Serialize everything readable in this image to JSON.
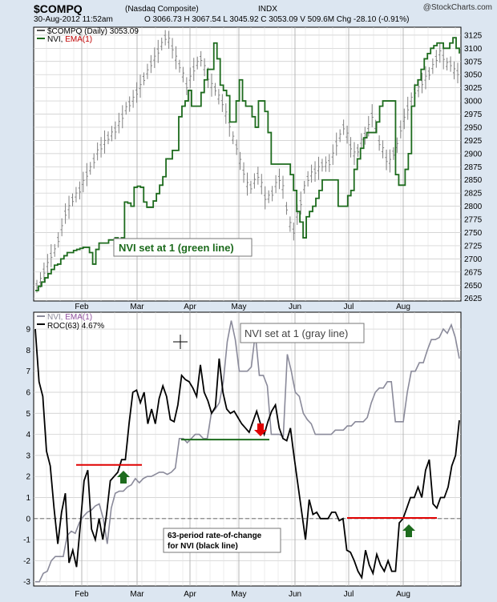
{
  "header": {
    "symbol": "$COMPQ",
    "name": "(Nasdaq Composite)",
    "exchange": "INDX",
    "brand": "@StockCharts.com",
    "datetime": "30-Aug-2012 11:52am",
    "ohlc": "O 3066.73  H 3067.54  L 3045.92  C 3053.09  V 509.6M  Chg -28.10 (-0.91%)"
  },
  "colors": {
    "nvi_green": "#1d6b1d",
    "nvi_gray": "#8a8a9a",
    "roc_black": "#000000",
    "price_bars": "#808080",
    "red_line": "#e00000",
    "grid": "#c8c8c8",
    "panel_bg": "#ffffff"
  },
  "chart_data": [
    {
      "type": "line",
      "panel": "top",
      "legend": [
        "$COMPQ (Daily) 3053.09",
        "NVI, EMA(1)"
      ],
      "x_ticks": [
        "Feb",
        "Mar",
        "Apr",
        "May",
        "Jun",
        "Jul",
        "Aug"
      ],
      "ylim": [
        2620,
        3140
      ],
      "y_ticks": [
        2625,
        2650,
        2675,
        2700,
        2725,
        2750,
        2775,
        2800,
        2825,
        2850,
        2875,
        2900,
        2925,
        2950,
        2975,
        3000,
        3025,
        3050,
        3075,
        3100,
        3125
      ],
      "grid": true,
      "annotation": "NVI set at 1 (green line)",
      "series": [
        {
          "name": "$COMPQ (Daily) 3053.09",
          "style": "ohlc-bars",
          "values": [
            2648,
            2660,
            2676,
            2690,
            2706,
            2716,
            2736,
            2760,
            2786,
            2798,
            2812,
            2822,
            2830,
            2846,
            2860,
            2872,
            2886,
            2904,
            2912,
            2922,
            2930,
            2938,
            2944,
            2958,
            2970,
            2986,
            2994,
            3004,
            3016,
            3028,
            3042,
            3056,
            3070,
            3082,
            3094,
            3108,
            3120,
            3116,
            3100,
            3082,
            3066,
            3050,
            3028,
            3044,
            3060,
            3072,
            3080,
            3064,
            3044,
            3030,
            3022,
            3008,
            2996,
            2976,
            2954,
            2930,
            2912,
            2886,
            2864,
            2842,
            2836,
            2848,
            2858,
            2842,
            2816,
            2818,
            2824,
            2842,
            2852,
            2836,
            2796,
            2766,
            2752,
            2784,
            2806,
            2836,
            2852,
            2862,
            2866,
            2872,
            2878,
            2880,
            2882,
            2898,
            2918,
            2934,
            2950,
            2936,
            2912,
            2900,
            2906,
            2924,
            2934,
            2952,
            2972,
            2952,
            2920,
            2908,
            2888,
            2886,
            2900,
            2916,
            2946,
            2966,
            2986,
            3004,
            3018,
            3024,
            3034,
            3044,
            3052,
            3066,
            3080,
            3092,
            3082,
            3070,
            3070,
            3058,
            3053
          ]
        },
        {
          "name": "NVI, EMA(1)",
          "style": "step",
          "values": [
            2640,
            2648,
            2656,
            2664,
            2672,
            2680,
            2688,
            2690,
            2700,
            2706,
            2712,
            2712,
            2716,
            2718,
            2720,
            2722,
            2722,
            2712,
            2690,
            2718,
            2730,
            2730,
            2730,
            2736,
            2736,
            2740,
            2736,
            2740,
            2808,
            2806,
            2800,
            2836,
            2838,
            2836,
            2808,
            2798,
            2798,
            2810,
            2824,
            2840,
            2856,
            2890,
            2890,
            2906,
            2906,
            2970,
            2990,
            3000,
            3020,
            2990,
            2990,
            2990,
            3016,
            3040,
            3060,
            3060,
            3110,
            3080,
            3030,
            3020,
            3010,
            2960,
            2960,
            3000,
            3040,
            3000,
            2990,
            2990,
            2970,
            2950,
            3000,
            3000,
            2980,
            2940,
            2880,
            2880,
            2880,
            2880,
            2880,
            2880,
            2860,
            2830,
            2790,
            2770,
            2740,
            2780,
            2790,
            2800,
            2815,
            2830,
            2850,
            2850,
            2850,
            2850,
            2850,
            2800,
            2800,
            2800,
            2820,
            2830,
            2870,
            2890,
            2910,
            2930,
            2940,
            2940,
            2940,
            2960,
            2990,
            3000,
            3000,
            3000,
            3000,
            2860,
            2840,
            2840,
            2870,
            2900,
            2990,
            3030,
            3040,
            3060,
            3080,
            3090,
            3100,
            3105,
            3110,
            3110,
            3100,
            3100,
            3110,
            3120,
            3100,
            3090
          ]
        }
      ]
    },
    {
      "type": "line",
      "panel": "bottom",
      "legend": [
        "NVI, EMA(1)",
        "ROC(63) 4.67%"
      ],
      "x_ticks": [
        "Feb",
        "Mar",
        "Apr",
        "May",
        "Jun",
        "Jul",
        "Aug"
      ],
      "ylim": [
        -3.2,
        9.8
      ],
      "y_ticks": [
        -3,
        -2,
        -1,
        0,
        1,
        2,
        3,
        4,
        5,
        6,
        7,
        8,
        9
      ],
      "grid": true,
      "annotations": [
        "NVI set at 1 (gray line)",
        "63-period rate-of-change\nfor NVI (black line)"
      ],
      "series": [
        {
          "name": "NVI, EMA(1)",
          "style": "line",
          "values": [
            -3.0,
            -3.0,
            -2.6,
            -2.5,
            -2.0,
            -1.8,
            -1.8,
            -1.8,
            -0.8,
            -0.6,
            -0.7,
            -0.2,
            0.1,
            0.3,
            0.4,
            0.6,
            0.7,
            0.0,
            -1.2,
            0.5,
            1.2,
            1.3,
            1.3,
            1.5,
            1.6,
            1.9,
            1.7,
            1.9,
            2.0,
            2.0,
            2.1,
            2.2,
            2.2,
            2.1,
            2.2,
            2.4,
            3.8,
            3.8,
            3.6,
            3.8,
            4.0,
            4.0,
            3.8,
            3.8,
            5.0,
            5.2,
            5.5,
            6.5,
            8.4,
            9.4,
            8.5,
            7.0,
            7.0,
            7.0,
            7.2,
            8.8,
            6.8,
            6.8,
            6.3,
            4.0,
            4.0,
            4.0,
            3.9,
            7.8,
            7.0,
            6.0,
            5.8,
            5.0,
            4.7,
            4.5,
            4.0,
            4.0,
            4.0,
            4.0,
            4.0,
            4.2,
            4.2,
            4.2,
            4.4,
            4.4,
            4.6,
            4.6,
            4.6,
            4.8,
            5.5,
            6.0,
            6.2,
            6.2,
            6.5,
            6.5,
            4.6,
            4.6,
            4.6,
            6.0,
            7.0,
            7.0,
            7.4,
            7.4,
            8.0,
            8.5,
            8.5,
            8.6,
            9.0,
            8.8,
            9.2,
            8.6,
            7.6
          ]
        },
        {
          "name": "ROC(63) 4.67%",
          "style": "line",
          "values": [
            9.0,
            6.5,
            5.8,
            3.2,
            2.5,
            0.5,
            -1.2,
            0.3,
            1.2,
            -2.1,
            -1.5,
            -2.3,
            -0.3,
            1.8,
            2.3,
            -0.5,
            -1.0,
            0.0,
            -1.0,
            0.2,
            1.8,
            2.0,
            2.2,
            2.8,
            2.8,
            4.5,
            6.0,
            6.1,
            5.5,
            6.0,
            4.5,
            5.2,
            4.5,
            5.7,
            6.3,
            5.8,
            4.7,
            4.6,
            5.4,
            6.8,
            6.6,
            6.5,
            6.2,
            5.8,
            7.3,
            6.0,
            5.6,
            5.0,
            5.3,
            7.6,
            6.0,
            5.2,
            5.0,
            5.1,
            4.8,
            4.5,
            4.3,
            4.1,
            4.6,
            5.1,
            4.5,
            4.0,
            4.6,
            5.1,
            5.4,
            4.3,
            3.8,
            3.7,
            4.3,
            2.9,
            1.6,
            0.3,
            -1.0,
            0.9,
            0.2,
            0.3,
            0.0,
            0.0,
            0.0,
            0.3,
            0.3,
            -0.1,
            0.0,
            -1.5,
            -1.6,
            -2.0,
            -2.5,
            -2.8,
            -1.5,
            -2.2,
            -2.6,
            -1.7,
            -2.2,
            -2.5,
            -2.0,
            -2.5,
            -2.5,
            -0.2,
            0.0,
            0.5,
            1.0,
            1.0,
            1.5,
            1.0,
            2.3,
            2.8,
            0.7,
            0.5,
            1.0,
            1.0,
            1.5,
            2.5,
            3.0,
            4.67
          ]
        }
      ]
    }
  ]
}
